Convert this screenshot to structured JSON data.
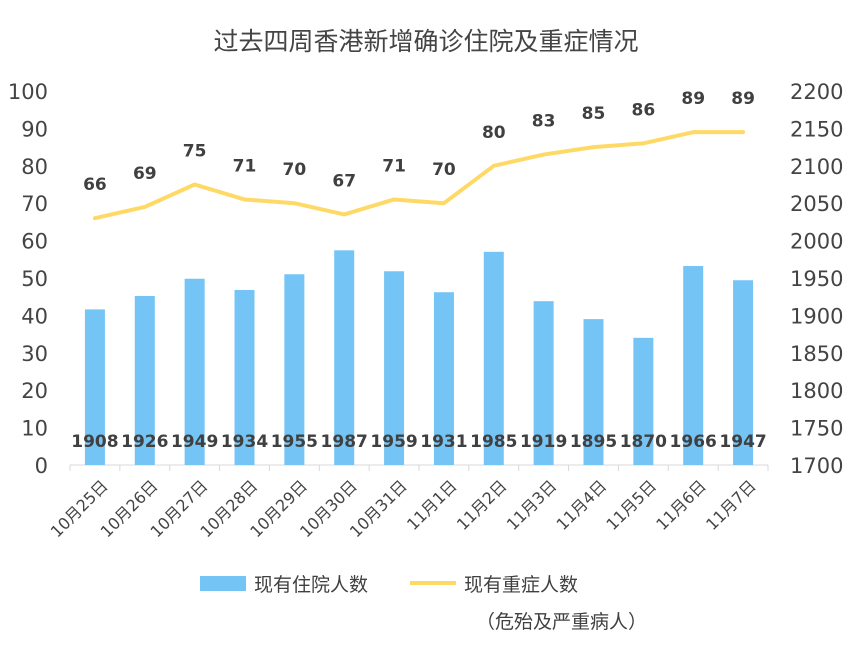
{
  "chart_data": {
    "type": "bar+line",
    "title": "过去四周香港新增确诊住院及重症情况",
    "categories": [
      "10月25日",
      "10月26日",
      "10月27日",
      "10月28日",
      "10月29日",
      "10月30日",
      "10月31日",
      "11月1日",
      "11月2日",
      "11月3日",
      "11月4日",
      "11月5日",
      "11月6日",
      "11月7日"
    ],
    "series": [
      {
        "name": "现有住院人数",
        "type": "bar",
        "axis": "right",
        "color": "#74C4F5",
        "values": [
          1908,
          1926,
          1949,
          1934,
          1955,
          1987,
          1959,
          1931,
          1985,
          1919,
          1895,
          1870,
          1966,
          1947
        ]
      },
      {
        "name": "现有重症人数",
        "type": "line",
        "axis": "left",
        "color": "#FFD966",
        "values": [
          66,
          69,
          75,
          71,
          70,
          67,
          71,
          70,
          80,
          83,
          85,
          86,
          89,
          89
        ]
      }
    ],
    "y_left": {
      "min": 0,
      "max": 100,
      "step": 10,
      "ticks": [
        "0",
        "10",
        "20",
        "30",
        "40",
        "50",
        "60",
        "70",
        "80",
        "90",
        "100"
      ]
    },
    "y_right": {
      "min": 1700,
      "max": 2200,
      "step": 50,
      "ticks": [
        "1700",
        "1750",
        "1800",
        "1850",
        "1900",
        "1950",
        "2000",
        "2050",
        "2100",
        "2150",
        "2200"
      ]
    },
    "legend": {
      "position": "bottom",
      "bar_label": "现有住院人数",
      "line_label": "现有重症人数",
      "line_sublabel": "（危殆及严重病人）"
    },
    "grid": false
  }
}
